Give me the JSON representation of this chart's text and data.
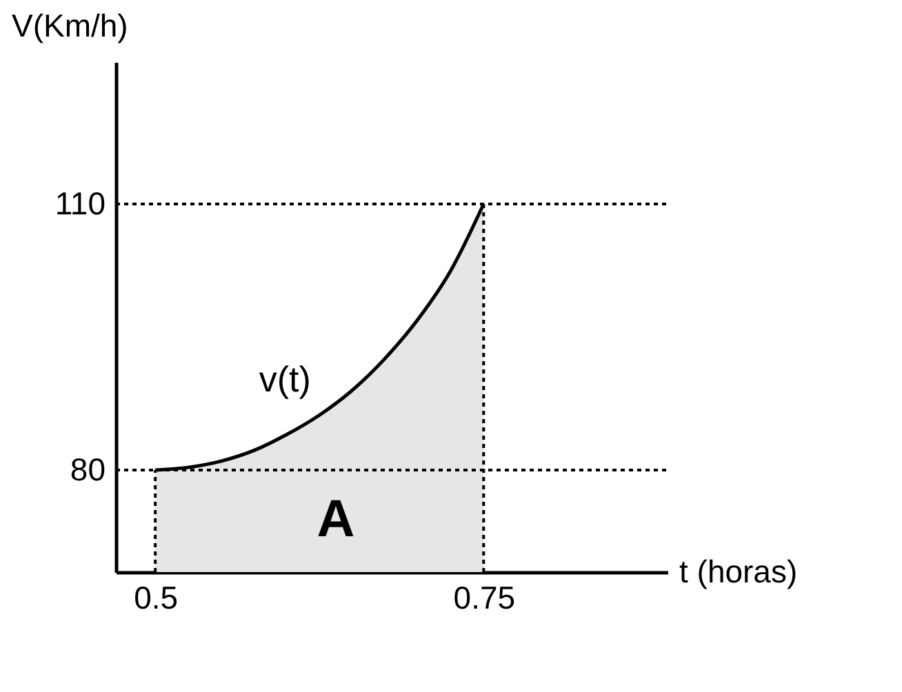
{
  "chart_data": {
    "type": "area",
    "xlabel": "t (horas)",
    "ylabel": "V(Km/h)",
    "x": [
      0.5,
      0.525,
      0.55,
      0.575,
      0.6,
      0.625,
      0.65,
      0.675,
      0.7,
      0.725,
      0.75
    ],
    "series": [
      {
        "color": "#e6e6e6",
        "values": [
          80,
          80.3,
          81,
          82.2,
          84,
          86.2,
          89,
          92.6,
          97,
          102.5,
          110
        ]
      }
    ],
    "xlim": [
      0.47,
      0.89
    ],
    "ylim": [
      68.5,
      126
    ],
    "xticks": [
      0.5,
      0.75
    ],
    "yticks": [
      80,
      110
    ],
    "grid": false,
    "ref_lines": [
      {
        "axis": "y",
        "value": 80,
        "line_style": "dotted"
      },
      {
        "axis": "y",
        "value": 110,
        "line_style": "dotted"
      },
      {
        "axis": "x",
        "value": 0.5,
        "line_style": "dotted"
      },
      {
        "axis": "x",
        "value": 0.75,
        "line_style": "dotted"
      }
    ],
    "annotations": [
      "v(t)",
      "A"
    ]
  }
}
